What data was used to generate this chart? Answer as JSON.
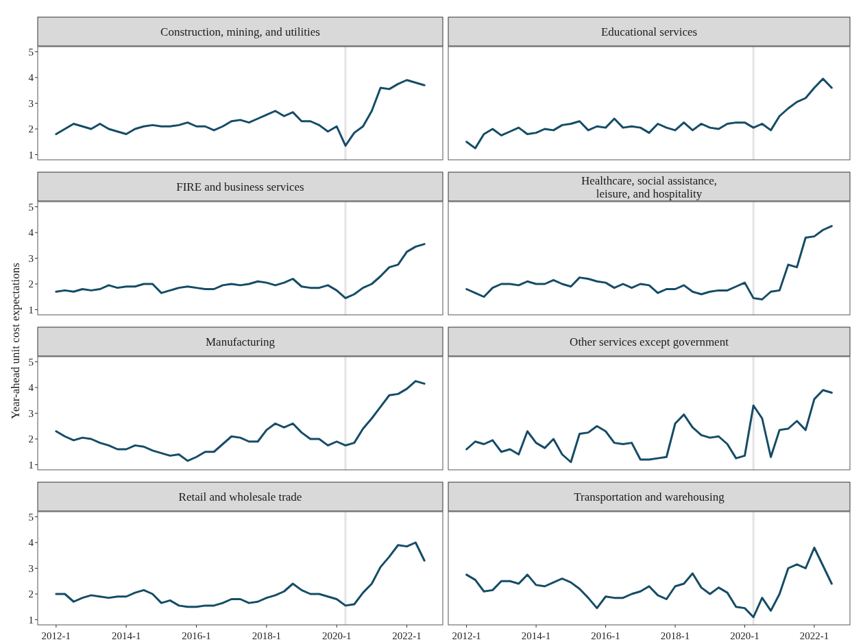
{
  "chart_data": [
    {
      "type": "line",
      "title": "Construction, mining, and utilities",
      "categories": [
        "2012-1",
        null,
        null,
        null,
        null,
        null,
        null,
        null,
        "2014-1",
        null,
        null,
        null,
        null,
        null,
        null,
        null,
        "2016-1",
        null,
        null,
        null,
        null,
        null,
        null,
        null,
        "2018-1",
        null,
        null,
        null,
        null,
        null,
        null,
        null,
        "2020-1",
        null,
        null,
        null,
        null,
        null,
        null,
        null,
        "2022-1",
        null,
        null
      ],
      "series": [
        {
          "color": "#154c66",
          "values": [
            1.8,
            2.0,
            2.2,
            2.1,
            2.0,
            2.2,
            2.0,
            1.9,
            1.8,
            2.0,
            2.1,
            2.15,
            2.1,
            2.1,
            2.15,
            2.25,
            2.1,
            2.1,
            1.95,
            2.1,
            2.3,
            2.35,
            2.25,
            2.4,
            2.55,
            2.7,
            2.5,
            2.65,
            2.3,
            2.3,
            2.15,
            1.9,
            2.1,
            1.35,
            1.85,
            2.1,
            2.7,
            3.6,
            3.55,
            3.75,
            3.9,
            3.8,
            3.7
          ]
        }
      ],
      "ylim": [
        0.8,
        5.2
      ],
      "yticks": [
        1,
        2,
        3,
        4,
        5
      ],
      "tick_labels": "y"
    },
    {
      "type": "line",
      "title": "Educational services",
      "categories": [
        "2012-1",
        null,
        null,
        null,
        null,
        null,
        null,
        null,
        "2014-1",
        null,
        null,
        null,
        null,
        null,
        null,
        null,
        "2016-1",
        null,
        null,
        null,
        null,
        null,
        null,
        null,
        "2018-1",
        null,
        null,
        null,
        null,
        null,
        null,
        null,
        "2020-1",
        null,
        null,
        null,
        null,
        null,
        null,
        null,
        "2022-1",
        null,
        null
      ],
      "series": [
        {
          "color": "#154c66",
          "values": [
            1.5,
            1.25,
            1.8,
            2.0,
            1.75,
            1.9,
            2.05,
            1.8,
            1.85,
            2.0,
            1.95,
            2.15,
            2.2,
            2.3,
            1.95,
            2.1,
            2.05,
            2.4,
            2.05,
            2.1,
            2.05,
            1.85,
            2.2,
            2.05,
            1.95,
            2.25,
            1.95,
            2.2,
            2.05,
            2.0,
            2.2,
            2.25,
            2.25,
            2.05,
            2.2,
            1.95,
            2.5,
            2.8,
            3.05,
            3.2,
            3.6,
            3.95,
            3.6
          ]
        }
      ],
      "ylim": [
        0.8,
        5.2
      ],
      "yticks": [
        1,
        2,
        3,
        4,
        5
      ],
      "tick_labels": false
    },
    {
      "type": "line",
      "title": "FIRE and business services",
      "categories": [
        "2012-1",
        null,
        null,
        null,
        null,
        null,
        null,
        null,
        "2014-1",
        null,
        null,
        null,
        null,
        null,
        null,
        null,
        "2016-1",
        null,
        null,
        null,
        null,
        null,
        null,
        null,
        "2018-1",
        null,
        null,
        null,
        null,
        null,
        null,
        null,
        "2020-1",
        null,
        null,
        null,
        null,
        null,
        null,
        null,
        "2022-1",
        null,
        null
      ],
      "series": [
        {
          "color": "#154c66",
          "values": [
            1.7,
            1.75,
            1.7,
            1.8,
            1.75,
            1.8,
            1.95,
            1.85,
            1.9,
            1.9,
            2.0,
            2.0,
            1.65,
            1.75,
            1.85,
            1.9,
            1.85,
            1.8,
            1.8,
            1.95,
            2.0,
            1.95,
            2.0,
            2.1,
            2.05,
            1.95,
            2.05,
            2.2,
            1.9,
            1.85,
            1.85,
            1.95,
            1.75,
            1.45,
            1.6,
            1.85,
            2.0,
            2.3,
            2.65,
            2.75,
            3.25,
            3.45,
            3.55
          ]
        }
      ],
      "ylim": [
        0.8,
        5.2
      ],
      "yticks": [
        1,
        2,
        3,
        4,
        5
      ],
      "tick_labels": "y"
    },
    {
      "type": "line",
      "title": "Healthcare, social assistance,\nleisure, and hospitality",
      "categories": [
        "2012-1",
        null,
        null,
        null,
        null,
        null,
        null,
        null,
        "2014-1",
        null,
        null,
        null,
        null,
        null,
        null,
        null,
        "2016-1",
        null,
        null,
        null,
        null,
        null,
        null,
        null,
        "2018-1",
        null,
        null,
        null,
        null,
        null,
        null,
        null,
        "2020-1",
        null,
        null,
        null,
        null,
        null,
        null,
        null,
        "2022-1",
        null,
        null
      ],
      "series": [
        {
          "color": "#154c66",
          "values": [
            1.8,
            1.65,
            1.5,
            1.85,
            2.0,
            2.0,
            1.95,
            2.1,
            2.0,
            2.0,
            2.15,
            2.0,
            1.9,
            2.25,
            2.2,
            2.1,
            2.05,
            1.85,
            2.0,
            1.85,
            2.0,
            1.95,
            1.65,
            1.8,
            1.8,
            1.95,
            1.7,
            1.6,
            1.7,
            1.75,
            1.75,
            1.9,
            2.05,
            1.45,
            1.4,
            1.7,
            1.75,
            2.75,
            2.65,
            3.8,
            3.85,
            4.1,
            4.25
          ]
        }
      ],
      "ylim": [
        0.8,
        5.2
      ],
      "yticks": [
        1,
        2,
        3,
        4,
        5
      ],
      "tick_labels": false
    },
    {
      "type": "line",
      "title": "Manufacturing",
      "ylabel": "Year-ahead unit cost expectations",
      "categories": [
        "2012-1",
        null,
        null,
        null,
        null,
        null,
        null,
        null,
        "2014-1",
        null,
        null,
        null,
        null,
        null,
        null,
        null,
        "2016-1",
        null,
        null,
        null,
        null,
        null,
        null,
        null,
        "2018-1",
        null,
        null,
        null,
        null,
        null,
        null,
        null,
        "2020-1",
        null,
        null,
        null,
        null,
        null,
        null,
        null,
        "2022-1",
        null,
        null
      ],
      "series": [
        {
          "color": "#154c66",
          "values": [
            2.3,
            2.1,
            1.95,
            2.05,
            2.0,
            1.85,
            1.75,
            1.6,
            1.6,
            1.75,
            1.7,
            1.55,
            1.45,
            1.35,
            1.4,
            1.15,
            1.3,
            1.5,
            1.5,
            1.8,
            2.1,
            2.05,
            1.9,
            1.9,
            2.35,
            2.6,
            2.45,
            2.6,
            2.25,
            2.0,
            2.0,
            1.75,
            1.9,
            1.75,
            1.85,
            2.4,
            2.8,
            3.25,
            3.7,
            3.75,
            3.95,
            4.25,
            4.15
          ]
        }
      ],
      "ylim": [
        0.8,
        5.2
      ],
      "yticks": [
        1,
        2,
        3,
        4,
        5
      ],
      "tick_labels": "y"
    },
    {
      "type": "line",
      "title": "Other services except government",
      "categories": [
        "2012-1",
        null,
        null,
        null,
        null,
        null,
        null,
        null,
        "2014-1",
        null,
        null,
        null,
        null,
        null,
        null,
        null,
        "2016-1",
        null,
        null,
        null,
        null,
        null,
        null,
        null,
        "2018-1",
        null,
        null,
        null,
        null,
        null,
        null,
        null,
        "2020-1",
        null,
        null,
        null,
        null,
        null,
        null,
        null,
        "2022-1",
        null,
        null
      ],
      "series": [
        {
          "color": "#154c66",
          "values": [
            1.6,
            1.9,
            1.8,
            1.95,
            1.5,
            1.6,
            1.4,
            2.3,
            1.85,
            1.65,
            2.0,
            1.4,
            1.1,
            2.2,
            2.25,
            2.5,
            2.3,
            1.85,
            1.8,
            1.85,
            1.2,
            1.2,
            1.25,
            1.3,
            2.6,
            2.95,
            2.45,
            2.15,
            2.05,
            2.1,
            1.8,
            1.25,
            1.35,
            3.3,
            2.8,
            1.3,
            2.35,
            2.4,
            2.7,
            2.35,
            3.55,
            3.9,
            3.8
          ]
        }
      ],
      "ylim": [
        0.8,
        5.2
      ],
      "yticks": [
        1,
        2,
        3,
        4,
        5
      ],
      "tick_labels": false
    },
    {
      "type": "line",
      "title": "Retail and wholesale trade",
      "categories": [
        "2012-1",
        null,
        null,
        null,
        null,
        null,
        null,
        null,
        "2014-1",
        null,
        null,
        null,
        null,
        null,
        null,
        null,
        "2016-1",
        null,
        null,
        null,
        null,
        null,
        null,
        null,
        "2018-1",
        null,
        null,
        null,
        null,
        null,
        null,
        null,
        "2020-1",
        null,
        null,
        null,
        null,
        null,
        null,
        null,
        "2022-1",
        null,
        null
      ],
      "series": [
        {
          "color": "#154c66",
          "values": [
            2.0,
            2.0,
            1.7,
            1.85,
            1.95,
            1.9,
            1.85,
            1.9,
            1.9,
            2.05,
            2.15,
            2.0,
            1.65,
            1.75,
            1.55,
            1.5,
            1.5,
            1.55,
            1.55,
            1.65,
            1.8,
            1.8,
            1.65,
            1.7,
            1.85,
            1.95,
            2.1,
            2.4,
            2.15,
            2.0,
            2.0,
            1.9,
            1.8,
            1.55,
            1.6,
            2.05,
            2.4,
            3.05,
            3.45,
            3.9,
            3.85,
            4.0,
            3.3
          ]
        }
      ],
      "ylim": [
        0.8,
        5.2
      ],
      "yticks": [
        1,
        2,
        3,
        4,
        5
      ]
    },
    {
      "type": "line",
      "title": "Transportation and warehousing",
      "categories": [
        "2012-1",
        null,
        null,
        null,
        null,
        null,
        null,
        null,
        "2014-1",
        null,
        null,
        null,
        null,
        null,
        null,
        null,
        "2016-1",
        null,
        null,
        null,
        null,
        null,
        null,
        null,
        "2018-1",
        null,
        null,
        null,
        null,
        null,
        null,
        null,
        "2020-1",
        null,
        null,
        null,
        null,
        null,
        null,
        null,
        "2022-1",
        null,
        null
      ],
      "series": [
        {
          "color": "#154c66",
          "values": [
            2.75,
            2.55,
            2.1,
            2.15,
            2.5,
            2.5,
            2.4,
            2.75,
            2.35,
            2.3,
            2.45,
            2.6,
            2.45,
            2.2,
            1.85,
            1.45,
            1.9,
            1.85,
            1.85,
            2.0,
            2.1,
            2.3,
            1.95,
            1.8,
            2.3,
            2.4,
            2.8,
            2.25,
            2.0,
            2.25,
            2.05,
            1.5,
            1.45,
            1.1,
            1.85,
            1.35,
            2.0,
            3.0,
            3.15,
            3.0,
            3.8,
            3.1,
            2.4
          ]
        }
      ],
      "ylim": [
        0.8,
        5.2
      ],
      "yticks": [
        1,
        2,
        3,
        4,
        5
      ],
      "tick_labels": "x"
    }
  ]
}
